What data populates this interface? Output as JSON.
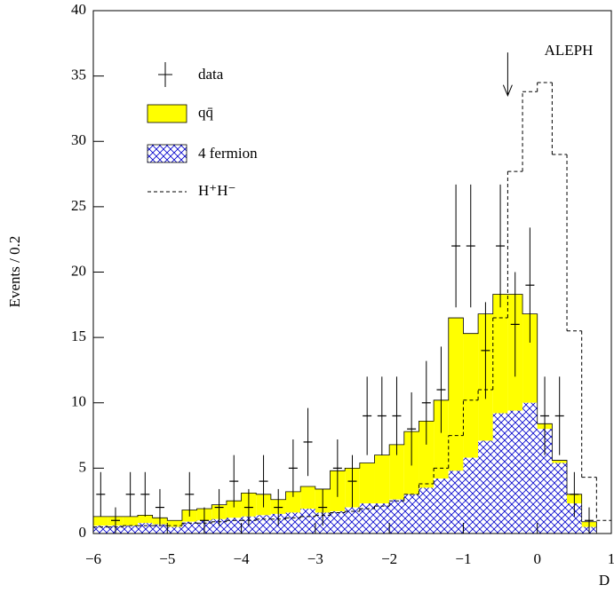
{
  "chart_data": {
    "type": "histogram",
    "ylabel": "Events / 0.2",
    "xlabel": "D",
    "annotation": "ALEPH",
    "arrow": {
      "x": -0.4,
      "y_from": 36.8,
      "y_to": 33.5
    },
    "bins": [
      -6,
      -5.8,
      -5.6,
      -5.4,
      -5.2,
      -5,
      -4.8,
      -4.6,
      -4.4,
      -4.2,
      -4,
      -3.8,
      -3.6,
      -3.4,
      -3.2,
      -3,
      -2.8,
      -2.6,
      -2.4,
      -2.2,
      -2,
      -1.8,
      -1.6,
      -1.4,
      -1.2,
      -1,
      -0.8,
      -0.6,
      -0.4,
      -0.2,
      0,
      0.2,
      0.4,
      0.6,
      0.8,
      1
    ],
    "series": [
      {
        "name": "4 fermion",
        "color": "#0000cc",
        "style": "hatched",
        "values": [
          0.6,
          0.6,
          0.6,
          0.8,
          0.7,
          0.5,
          0.9,
          1.0,
          1.1,
          1.2,
          1.3,
          1.4,
          1.5,
          1.6,
          1.9,
          1.6,
          1.7,
          2.0,
          2.3,
          2.3,
          2.6,
          3.0,
          3.5,
          4.2,
          4.8,
          5.8,
          7.1,
          9.2,
          9.4,
          10.0,
          8.0,
          5.4,
          2.3,
          0.5,
          0
        ]
      },
      {
        "name": "qq̄",
        "color": "#ffff00",
        "style": "filled",
        "values": [
          0.7,
          0.7,
          0.7,
          0.6,
          0.5,
          0.5,
          0.9,
          0.9,
          1.1,
          1.3,
          1.8,
          1.6,
          1.1,
          1.6,
          1.7,
          1.8,
          3.1,
          3.0,
          3.1,
          3.7,
          4.2,
          4.8,
          5.1,
          6.0,
          11.7,
          9.5,
          9.7,
          9.1,
          8.9,
          6.8,
          0.4,
          0.2,
          0.7,
          0.4,
          0
        ]
      },
      {
        "name": "H⁺H⁻",
        "color": "#000000",
        "style": "dashed",
        "values": [
          0.5,
          0.5,
          0.6,
          0.6,
          0.6,
          0.6,
          0.8,
          0.8,
          0.9,
          1.0,
          1.0,
          1.1,
          1.1,
          1.2,
          1.3,
          1.4,
          1.6,
          1.7,
          1.9,
          2.1,
          2.5,
          3.0,
          3.8,
          5.0,
          7.5,
          10.2,
          11.0,
          16.5,
          27.7,
          33.8,
          34.5,
          29.0,
          15.5,
          4.3,
          1.0
        ]
      }
    ],
    "data": {
      "name": "data",
      "color": "#000000",
      "values": [
        3,
        1,
        3,
        3,
        2,
        null,
        3,
        1,
        2,
        4,
        2,
        4,
        2,
        5,
        7,
        2,
        5,
        4,
        9,
        9,
        9,
        8,
        10,
        11,
        22,
        22,
        14,
        22,
        16,
        19,
        9,
        9,
        3,
        1,
        null
      ],
      "errors": [
        1.7,
        1,
        1.7,
        1.7,
        1.4,
        null,
        1.7,
        1,
        1.4,
        2,
        1.4,
        2,
        1.4,
        2.2,
        2.6,
        1.4,
        2.2,
        2,
        3,
        3,
        3,
        2.8,
        3.2,
        3.3,
        4.7,
        4.7,
        3.7,
        4.7,
        4,
        4.4,
        3,
        3,
        1.7,
        1,
        null
      ]
    },
    "xlim": [
      -6,
      1
    ],
    "ylim": [
      0,
      40
    ],
    "xticks": [
      {
        "value": -6,
        "label": "−6"
      },
      {
        "value": -5,
        "label": "−5"
      },
      {
        "value": -4,
        "label": "−4"
      },
      {
        "value": -3,
        "label": "−3"
      },
      {
        "value": -2,
        "label": "−2"
      },
      {
        "value": -1,
        "label": "−1"
      },
      0,
      1
    ],
    "yticks": [
      0,
      5,
      10,
      15,
      20,
      25,
      30,
      35,
      40
    ],
    "legend": "top-left"
  }
}
